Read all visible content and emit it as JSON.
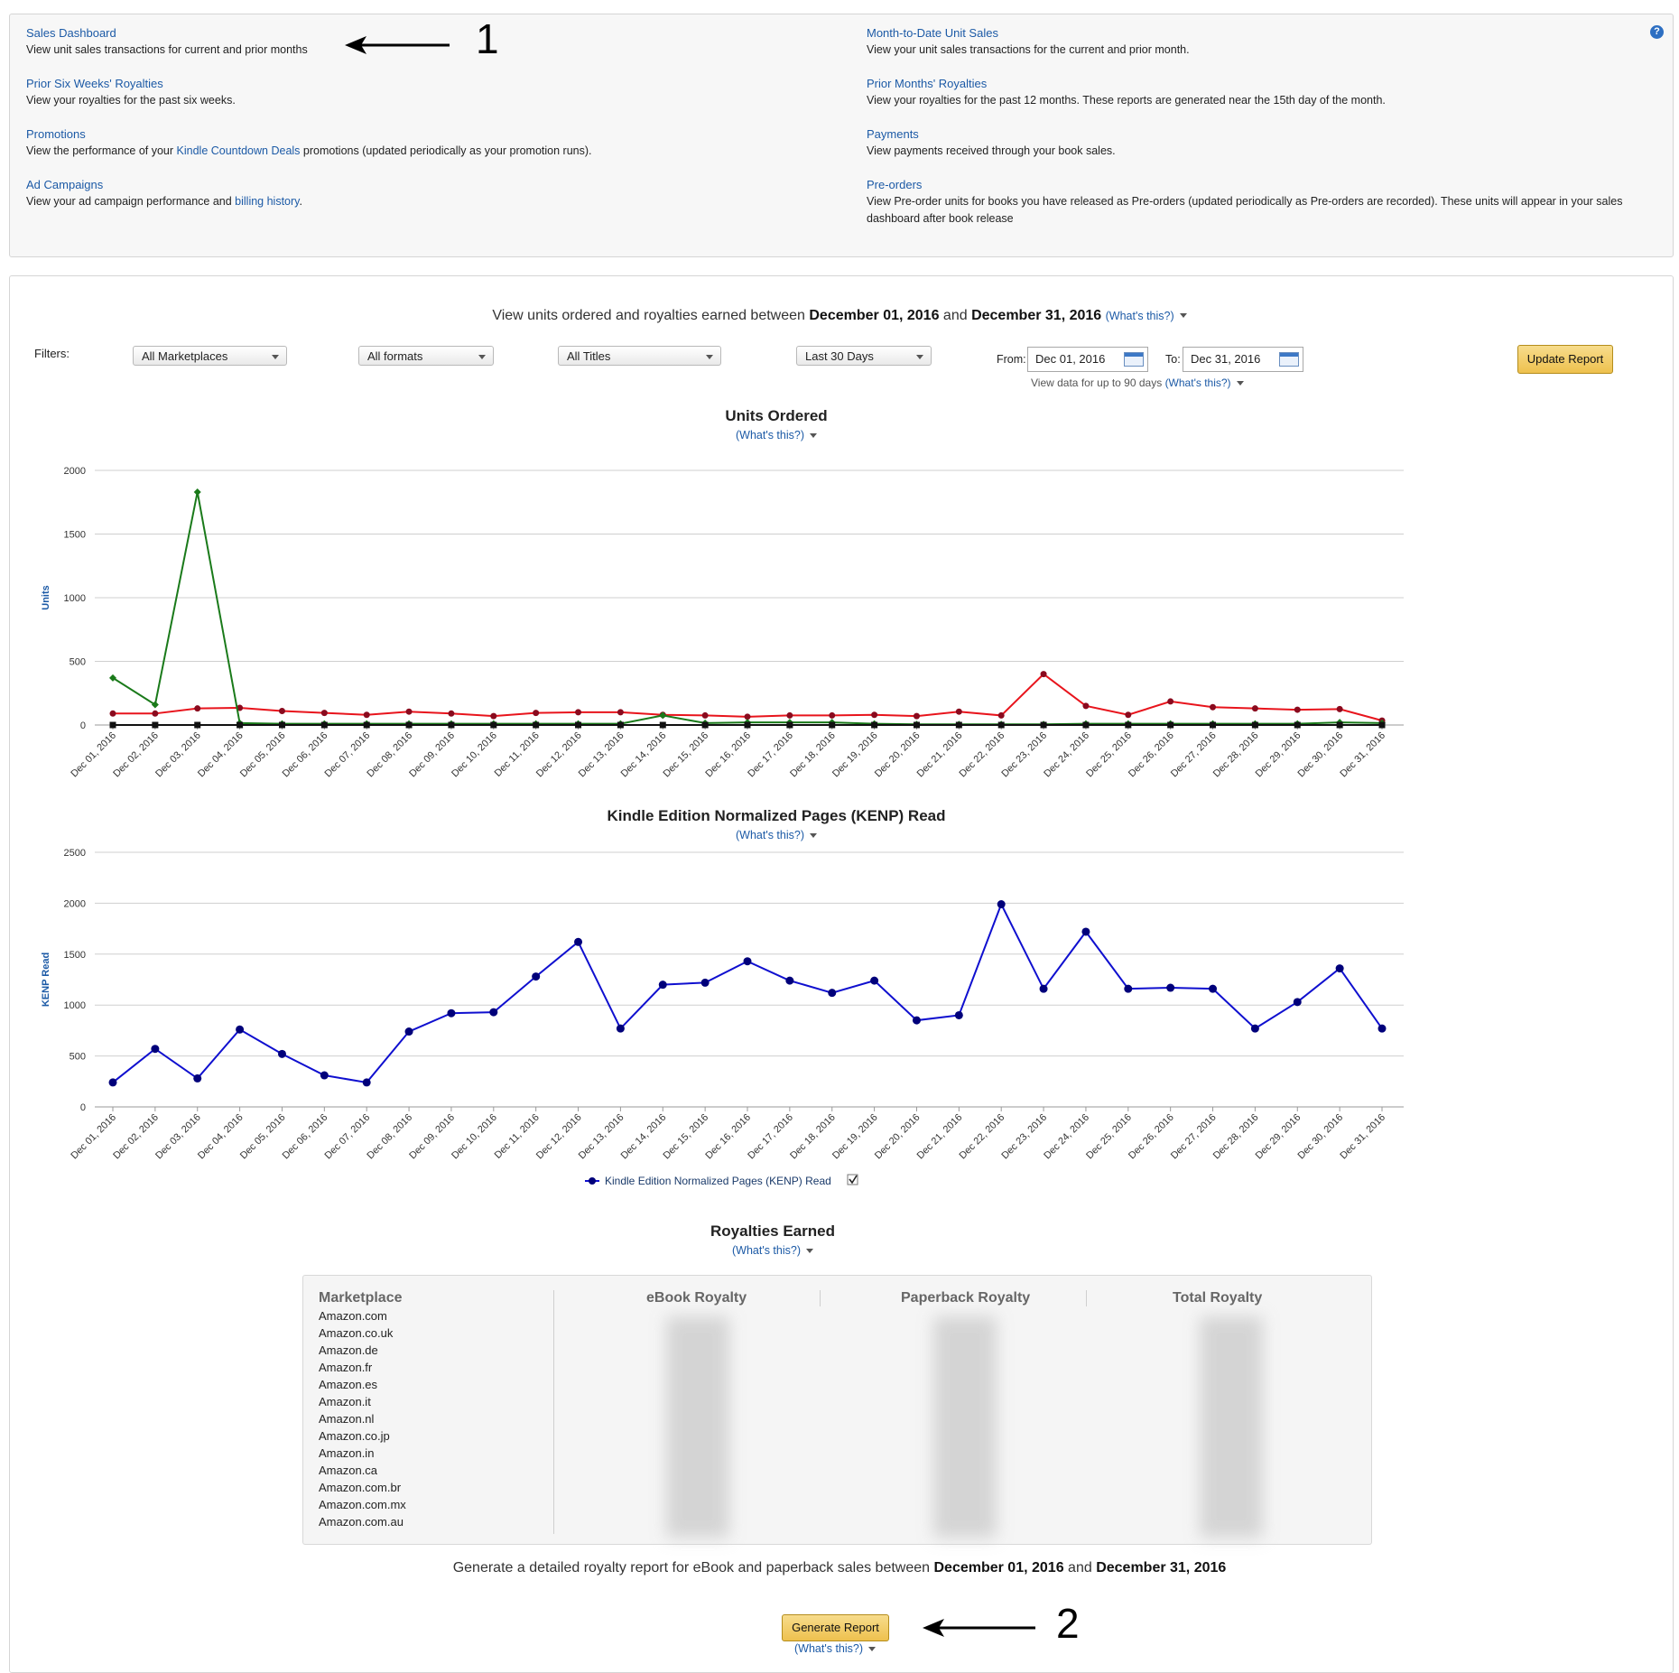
{
  "nav": {
    "help_icon": "?",
    "left": [
      {
        "title": "Sales Dashboard",
        "desc_pre": "View unit sales transactions for current and prior months",
        "desc_link": "",
        "desc_post": ""
      },
      {
        "title": "Prior Six Weeks' Royalties",
        "desc_pre": "View your royalties for the past six weeks.",
        "desc_link": "",
        "desc_post": ""
      },
      {
        "title": "Promotions",
        "desc_pre": "View the performance of your ",
        "desc_link": "Kindle Countdown Deals",
        "desc_post": " promotions (updated periodically as your promotion runs)."
      },
      {
        "title": "Ad Campaigns",
        "desc_pre": "View your ad campaign performance and ",
        "desc_link": "billing history",
        "desc_post": "."
      }
    ],
    "right": [
      {
        "title": "Month-to-Date Unit Sales",
        "desc": "View your unit sales transactions for the current and prior month."
      },
      {
        "title": "Prior Months' Royalties",
        "desc": "View your royalties for the past 12 months. These reports are generated near the 15th day of the month."
      },
      {
        "title": "Payments",
        "desc": "View payments received through your book sales."
      },
      {
        "title": "Pre-orders",
        "desc": "View Pre-order units for books you have released as Pre-orders (updated periodically as Pre-orders are recorded). These units will appear in your sales dashboard after book release"
      }
    ]
  },
  "annotations": {
    "one": "1",
    "two": "2"
  },
  "header": {
    "pre": "View units ordered and royalties earned between ",
    "date_from": "December 01, 2016",
    "mid": " and ",
    "date_to": "December 31, 2016",
    "whats": "(What's this?)"
  },
  "filters": {
    "label": "Filters:",
    "marketplace": "All Marketplaces",
    "format": "All formats",
    "titles": "All Titles",
    "range": "Last 30 Days",
    "from_label": "From:",
    "from_value": "Dec 01, 2016",
    "to_label": "To:",
    "to_value": "Dec 31, 2016",
    "hint": "View data for up to 90 days",
    "hint_whats": "(What's this?)",
    "update_button": "Update Report"
  },
  "units_chart": {
    "title": "Units Ordered",
    "whats": "(What's this?)"
  },
  "kenp_chart": {
    "title": "Kindle Edition Normalized Pages (KENP) Read",
    "whats": "(What's this?)"
  },
  "chart_data": [
    {
      "type": "line",
      "title": "Units Ordered",
      "ylabel": "Units",
      "xlabel": "",
      "ylim": [
        0,
        2000
      ],
      "yticks": [
        0,
        500,
        1000,
        1500,
        2000
      ],
      "grid": true,
      "categories": [
        "Dec 01, 2016",
        "Dec 02, 2016",
        "Dec 03, 2016",
        "Dec 04, 2016",
        "Dec 05, 2016",
        "Dec 06, 2016",
        "Dec 07, 2016",
        "Dec 08, 2016",
        "Dec 09, 2016",
        "Dec 10, 2016",
        "Dec 11, 2016",
        "Dec 12, 2016",
        "Dec 13, 2016",
        "Dec 14, 2016",
        "Dec 15, 2016",
        "Dec 16, 2016",
        "Dec 17, 2016",
        "Dec 18, 2016",
        "Dec 19, 2016",
        "Dec 20, 2016",
        "Dec 21, 2016",
        "Dec 22, 2016",
        "Dec 23, 2016",
        "Dec 24, 2016",
        "Dec 25, 2016",
        "Dec 26, 2016",
        "Dec 27, 2016",
        "Dec 28, 2016",
        "Dec 29, 2016",
        "Dec 30, 2016",
        "Dec 31, 2016"
      ],
      "series": [
        {
          "color": "#e8141c",
          "marker": "circle",
          "values": [
            90,
            90,
            130,
            135,
            110,
            95,
            80,
            105,
            90,
            70,
            95,
            100,
            100,
            80,
            75,
            65,
            75,
            75,
            80,
            70,
            105,
            75,
            400,
            150,
            80,
            185,
            140,
            130,
            120,
            125,
            35
          ]
        },
        {
          "color": "#1a7a1a",
          "marker": "diamond",
          "values": [
            370,
            160,
            1830,
            15,
            10,
            10,
            10,
            10,
            10,
            10,
            10,
            10,
            10,
            75,
            15,
            20,
            20,
            20,
            10,
            5,
            5,
            5,
            5,
            10,
            10,
            10,
            10,
            10,
            10,
            20,
            15
          ]
        },
        {
          "color": "#111111",
          "marker": "square",
          "values": [
            0,
            0,
            0,
            0,
            0,
            0,
            0,
            0,
            0,
            0,
            0,
            0,
            0,
            0,
            0,
            0,
            0,
            0,
            0,
            0,
            0,
            0,
            0,
            0,
            0,
            0,
            0,
            0,
            0,
            0,
            0
          ]
        }
      ]
    },
    {
      "type": "line",
      "title": "Kindle Edition Normalized Pages (KENP) Read",
      "ylabel": "KENP Read",
      "xlabel": "",
      "ylim": [
        0,
        2500
      ],
      "yticks": [
        0,
        500,
        1000,
        1500,
        2000,
        2500
      ],
      "grid": true,
      "legend": "bottom-center",
      "categories": [
        "Dec 01, 2016",
        "Dec 02, 2016",
        "Dec 03, 2016",
        "Dec 04, 2016",
        "Dec 05, 2016",
        "Dec 06, 2016",
        "Dec 07, 2016",
        "Dec 08, 2016",
        "Dec 09, 2016",
        "Dec 10, 2016",
        "Dec 11, 2016",
        "Dec 12, 2016",
        "Dec 13, 2016",
        "Dec 14, 2016",
        "Dec 15, 2016",
        "Dec 16, 2016",
        "Dec 17, 2016",
        "Dec 18, 2016",
        "Dec 19, 2016",
        "Dec 20, 2016",
        "Dec 21, 2016",
        "Dec 22, 2016",
        "Dec 23, 2016",
        "Dec 24, 2016",
        "Dec 25, 2016",
        "Dec 26, 2016",
        "Dec 27, 2016",
        "Dec 28, 2016",
        "Dec 29, 2016",
        "Dec 30, 2016",
        "Dec 31, 2016"
      ],
      "series": [
        {
          "name": "Kindle Edition Normalized Pages (KENP) Read",
          "color": "#0f0fcf",
          "marker": "circle",
          "values": [
            240,
            570,
            280,
            760,
            520,
            310,
            240,
            740,
            920,
            930,
            1280,
            1620,
            770,
            1200,
            1220,
            1430,
            1240,
            1120,
            1240,
            850,
            900,
            1990,
            1160,
            1720,
            1160,
            1170,
            1160,
            770,
            1030,
            1360,
            770
          ]
        }
      ]
    }
  ],
  "royalties": {
    "title": "Royalties Earned",
    "whats": "(What's this?)",
    "columns": [
      "Marketplace",
      "eBook Royalty",
      "Paperback Royalty",
      "Total Royalty"
    ],
    "marketplaces": [
      "Amazon.com",
      "Amazon.co.uk",
      "Amazon.de",
      "Amazon.fr",
      "Amazon.es",
      "Amazon.it",
      "Amazon.nl",
      "Amazon.co.jp",
      "Amazon.in",
      "Amazon.ca",
      "Amazon.com.br",
      "Amazon.com.mx",
      "Amazon.com.au"
    ]
  },
  "generate": {
    "pre": "Generate a detailed royalty report for eBook and paperback sales between ",
    "date_from": "December 01, 2016",
    "mid": " and ",
    "date_to": "December 31, 2016",
    "button": "Generate Report",
    "whats": "(What's this?)"
  }
}
